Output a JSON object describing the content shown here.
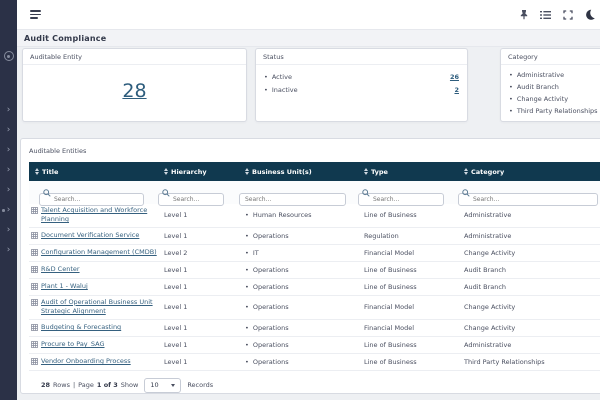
{
  "page": {
    "title": "Audit Compliance"
  },
  "topbar": {
    "icons": [
      "pin",
      "list",
      "fullscreen",
      "dark-mode-moon"
    ]
  },
  "cards": {
    "auditable_entity": {
      "label": "Auditable Entity",
      "count": "28"
    },
    "status": {
      "label": "Status",
      "items": [
        {
          "label": "Active",
          "count": "26"
        },
        {
          "label": "Inactive",
          "count": "2"
        }
      ]
    },
    "category": {
      "label": "Category",
      "items": [
        {
          "label": "Administrative"
        },
        {
          "label": "Audit Branch"
        },
        {
          "label": "Change Activity"
        },
        {
          "label": "Third Party Relationships"
        }
      ]
    }
  },
  "table": {
    "title": "Auditable Entities",
    "columns": [
      {
        "label": "Title"
      },
      {
        "label": "Hierarchy"
      },
      {
        "label": "Business Unit(s)"
      },
      {
        "label": "Type"
      },
      {
        "label": "Category"
      }
    ],
    "search_placeholder": "Search...",
    "rows": [
      {
        "title": "Talent Acquisition and Workforce Planning",
        "hierarchy": "Level 1",
        "business_unit": "Human Resources",
        "type": "Line of Business",
        "category": "Administrative"
      },
      {
        "title": "Document Verification Service",
        "hierarchy": "Level 1",
        "business_unit": "Operations",
        "type": "Regulation",
        "category": "Administrative"
      },
      {
        "title": "Configuration Management (CMDB)",
        "hierarchy": "Level 2",
        "business_unit": "IT",
        "type": "Financial Model",
        "category": "Change Activity"
      },
      {
        "title": "R&D Center",
        "hierarchy": "Level 1",
        "business_unit": "Operations",
        "type": "Line of Business",
        "category": "Audit Branch"
      },
      {
        "title": "Plant 1 - Waluj",
        "hierarchy": "Level 1",
        "business_unit": "Operations",
        "type": "Line of Business",
        "category": "Audit Branch"
      },
      {
        "title": "Audit of Operational Business Unit Strategic Alignment",
        "hierarchy": "Level 1",
        "business_unit": "Operations",
        "type": "Financial Model",
        "category": "Change Activity"
      },
      {
        "title": "Budgeting & Forecasting",
        "hierarchy": "Level 1",
        "business_unit": "Operations",
        "type": "Financial Model",
        "category": "Change Activity"
      },
      {
        "title": "Procure to Pay_SAG",
        "hierarchy": "Level 1",
        "business_unit": "Operations",
        "type": "Line of Business",
        "category": "Administrative"
      },
      {
        "title": "Vendor Onboarding Process",
        "hierarchy": "Level 1",
        "business_unit": "Operations",
        "type": "Line of Business",
        "category": "Third Party Relationships"
      }
    ],
    "pagination": {
      "rows_count": "28",
      "rows_label": "Rows",
      "separator": "|",
      "page_label": "Page",
      "page_value": "1 of 3",
      "show_label": "Show",
      "page_size": "10",
      "records_label": "Records"
    }
  },
  "colors": {
    "sidebar": "#2b3147",
    "table_header": "#10394f",
    "link": "#2e5d7d",
    "background": "#eef0f3"
  }
}
